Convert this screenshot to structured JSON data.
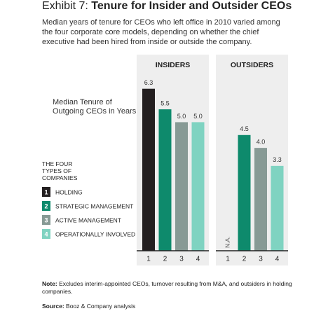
{
  "exhibit": "Exhibit 7:",
  "title": "Tenure for Insider and Outsider CEOs",
  "subtitle": "Median years of tenure for CEOs who left office in 2010 varied among the four corporate core models, depending on whether the chief executive had been hired from inside or outside the company.",
  "chart_data": {
    "type": "bar",
    "ylabel": "Median Tenure of Outgoing CEOs in Years",
    "categories": [
      "1",
      "2",
      "3",
      "4"
    ],
    "colors": [
      "#231f20",
      "#0e8a6c",
      "#879a95",
      "#7fd3c1"
    ],
    "legend_title": "THE FOUR TYPES OF COMPANIES",
    "legend_labels": [
      "HOLDING",
      "STRATEGIC MANAGEMENT",
      "ACTIVE MANAGEMENT",
      "OPERATIONALLY INVOLVED"
    ],
    "series": [
      {
        "name": "INSIDERS",
        "values": [
          6.3,
          5.5,
          5.0,
          5.0
        ],
        "value_labels": [
          "6.3",
          "5.5",
          "5.0",
          "5.0"
        ]
      },
      {
        "name": "OUTSIDERS",
        "values": [
          null,
          4.5,
          4.0,
          3.3
        ],
        "value_labels": [
          "N.A.",
          "4.5",
          "4.0",
          "3.3"
        ]
      }
    ],
    "ylim": [
      0,
      7
    ]
  },
  "note_label": "Note:",
  "note": "Excludes interim-appointed CEOs, turnover resulting from M&A, and outsiders in holding companies.",
  "source_label": "Source:",
  "source": "Booz & Company analysis"
}
